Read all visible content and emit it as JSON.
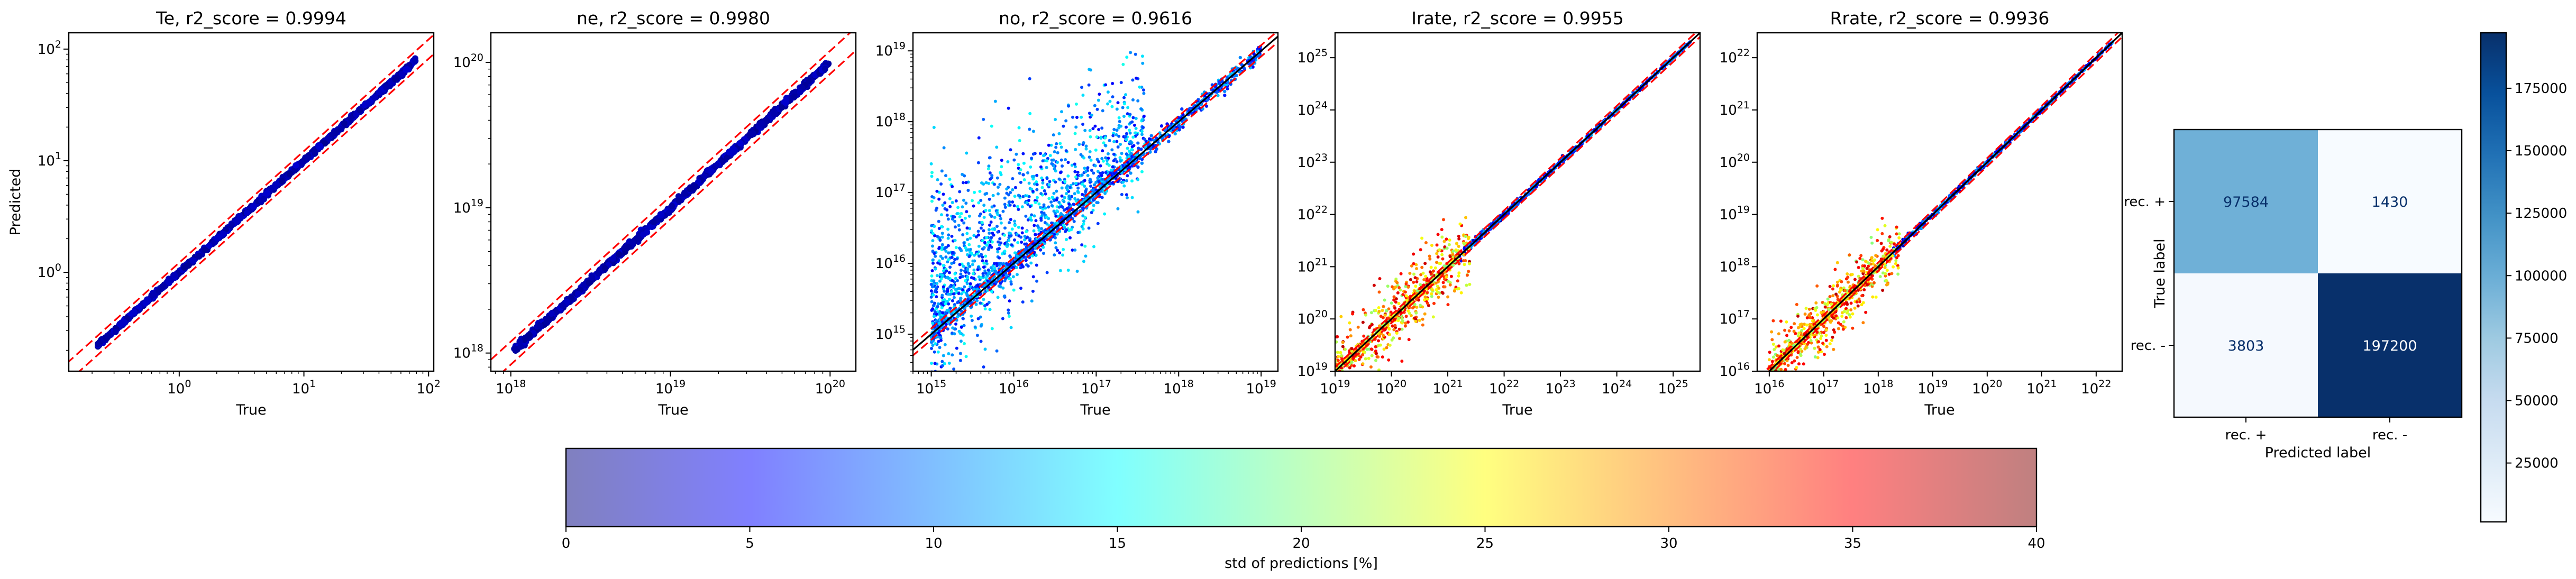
{
  "colors": {
    "identity_line": "#000000",
    "bound_lines": "#ff0000",
    "heatmap_low": "#f7fbff",
    "heatmap_high": "#08306b",
    "jet": [
      "#00007f",
      "#0000ff",
      "#007fff",
      "#00ffff",
      "#7fff7f",
      "#ffff00",
      "#ff7f00",
      "#ff0000",
      "#7f0000"
    ]
  },
  "chart_data": [
    {
      "type": "scatter",
      "title": "Te, r2_score = 0.9994",
      "xlabel": "True",
      "ylabel": "Predicted",
      "xscale": "log",
      "yscale": "log",
      "xlim": [
        0.13,
        110
      ],
      "ylim": [
        0.13,
        140
      ],
      "x_ticks": [
        {
          "value": 1,
          "exp": "0"
        },
        {
          "value": 10,
          "exp": "1"
        },
        {
          "value": 100,
          "exp": "2"
        }
      ],
      "y_ticks": [
        {
          "value": 1,
          "exp": "0"
        },
        {
          "value": 10,
          "exp": "1"
        },
        {
          "value": 100,
          "exp": "2"
        }
      ],
      "data_range": [
        0.22,
        80
      ],
      "bound_factor": 1.22,
      "scatter": 0.02,
      "outlier_count": 0,
      "outlier_spread": 0,
      "color_mode": "navy",
      "show_identity": false
    },
    {
      "type": "scatter",
      "title": "ne, r2_score = 0.9980",
      "xlabel": "True",
      "ylabel": "",
      "xscale": "log",
      "yscale": "log",
      "xlim": [
        7.5e+17,
        1.45e+20
      ],
      "ylim": [
        7.5e+17,
        1.6e+20
      ],
      "x_ticks": [
        {
          "value": 1e+18,
          "exp": "18"
        },
        {
          "value": 1e+19,
          "exp": "19"
        },
        {
          "value": 1e+20,
          "exp": "20"
        }
      ],
      "y_ticks": [
        {
          "value": 1e+18,
          "exp": "18"
        },
        {
          "value": 1e+19,
          "exp": "19"
        },
        {
          "value": 1e+20,
          "exp": "20"
        }
      ],
      "data_range": [
        1.05e+18,
        9.8e+19
      ],
      "bound_factor": 1.2,
      "scatter": 0.02,
      "outlier_count": 0,
      "outlier_spread": 0,
      "color_mode": "navy",
      "show_identity": false
    },
    {
      "type": "scatter",
      "title": "no, r2_score = 0.9616",
      "xlabel": "True",
      "ylabel": "",
      "xscale": "log",
      "yscale": "log",
      "xlim": [
        600000000000000.0,
        1.6e+19
      ],
      "ylim": [
        300000000000000.0,
        1.8e+19
      ],
      "x_ticks": [
        {
          "value": 1000000000000000.0,
          "exp": "15"
        },
        {
          "value": 1e+16,
          "exp": "16"
        },
        {
          "value": 1e+17,
          "exp": "17"
        },
        {
          "value": 1e+18,
          "exp": "18"
        },
        {
          "value": 1e+19,
          "exp": "19"
        }
      ],
      "y_ticks": [
        {
          "value": 1000000000000000.0,
          "exp": "15"
        },
        {
          "value": 1e+16,
          "exp": "16"
        },
        {
          "value": 1e+17,
          "exp": "17"
        },
        {
          "value": 1e+18,
          "exp": "18"
        },
        {
          "value": 1e+19,
          "exp": "19"
        }
      ],
      "data_range": [
        1000000000000000.0,
        1e+19
      ],
      "bound_factor": 1.2,
      "scatter": 0.12,
      "outlier_count": 1400,
      "outlier_spread": 1.6,
      "color_mode": "blue_cyan",
      "show_identity": true
    },
    {
      "type": "scatter",
      "title": "Irate, r2_score = 0.9955",
      "xlabel": "True",
      "ylabel": "",
      "xscale": "log",
      "yscale": "log",
      "xlim": [
        1e+19,
        3e+25
      ],
      "ylim": [
        1e+19,
        3e+25
      ],
      "x_ticks": [
        {
          "value": 1e+19,
          "exp": "19"
        },
        {
          "value": 1e+20,
          "exp": "20"
        },
        {
          "value": 1e+21,
          "exp": "21"
        },
        {
          "value": 1e+22,
          "exp": "22"
        },
        {
          "value": 1e+23,
          "exp": "23"
        },
        {
          "value": 1e+24,
          "exp": "24"
        },
        {
          "value": 1e+25,
          "exp": "25"
        }
      ],
      "y_ticks": [
        {
          "value": 1e+19,
          "exp": "19"
        },
        {
          "value": 1e+20,
          "exp": "20"
        },
        {
          "value": 1e+21,
          "exp": "21"
        },
        {
          "value": 1e+22,
          "exp": "22"
        },
        {
          "value": 1e+23,
          "exp": "23"
        },
        {
          "value": 1e+24,
          "exp": "24"
        },
        {
          "value": 1e+25,
          "exp": "25"
        }
      ],
      "data_range": [
        1e+19,
        2e+25
      ],
      "bound_factor": 1.2,
      "scatter": 0.06,
      "outlier_count": 500,
      "outlier_spread": 0.35,
      "color_mode": "rainbow_low",
      "show_identity": true
    },
    {
      "type": "scatter",
      "title": "Rrate, r2_score = 0.9936",
      "xlabel": "True",
      "ylabel": "",
      "xscale": "log",
      "yscale": "log",
      "xlim": [
        6000000000000000.0,
        3e+22
      ],
      "ylim": [
        1e+16,
        3e+22
      ],
      "x_ticks": [
        {
          "value": 1e+16,
          "exp": "16"
        },
        {
          "value": 1e+17,
          "exp": "17"
        },
        {
          "value": 1e+18,
          "exp": "18"
        },
        {
          "value": 1e+19,
          "exp": "19"
        },
        {
          "value": 1e+20,
          "exp": "20"
        },
        {
          "value": 1e+21,
          "exp": "21"
        },
        {
          "value": 1e+22,
          "exp": "22"
        }
      ],
      "y_ticks": [
        {
          "value": 1e+16,
          "exp": "16"
        },
        {
          "value": 1e+17,
          "exp": "17"
        },
        {
          "value": 1e+18,
          "exp": "18"
        },
        {
          "value": 1e+19,
          "exp": "19"
        },
        {
          "value": 1e+20,
          "exp": "20"
        },
        {
          "value": 1e+21,
          "exp": "21"
        },
        {
          "value": 1e+22,
          "exp": "22"
        }
      ],
      "data_range": [
        1e+16,
        2e+22
      ],
      "bound_factor": 1.2,
      "scatter": 0.06,
      "outlier_count": 500,
      "outlier_spread": 0.3,
      "color_mode": "rainbow_low",
      "show_identity": true
    },
    {
      "type": "heatmap",
      "xlabel": "Predicted label",
      "ylabel": "True label",
      "x_categories": [
        "rec. +",
        "rec. -"
      ],
      "y_categories": [
        "rec. +",
        "rec. -"
      ],
      "values": [
        [
          97584,
          1430
        ],
        [
          3803,
          197200
        ]
      ],
      "colorbar_range": [
        1430,
        197200
      ],
      "colorbar_ticks": [
        25000,
        50000,
        75000,
        100000,
        125000,
        150000,
        175000
      ]
    },
    {
      "type": "colorbar",
      "label": "std of predictions [%]",
      "range": [
        0,
        40
      ],
      "ticks": [
        0,
        5,
        10,
        15,
        20,
        25,
        30,
        35,
        40
      ]
    }
  ]
}
